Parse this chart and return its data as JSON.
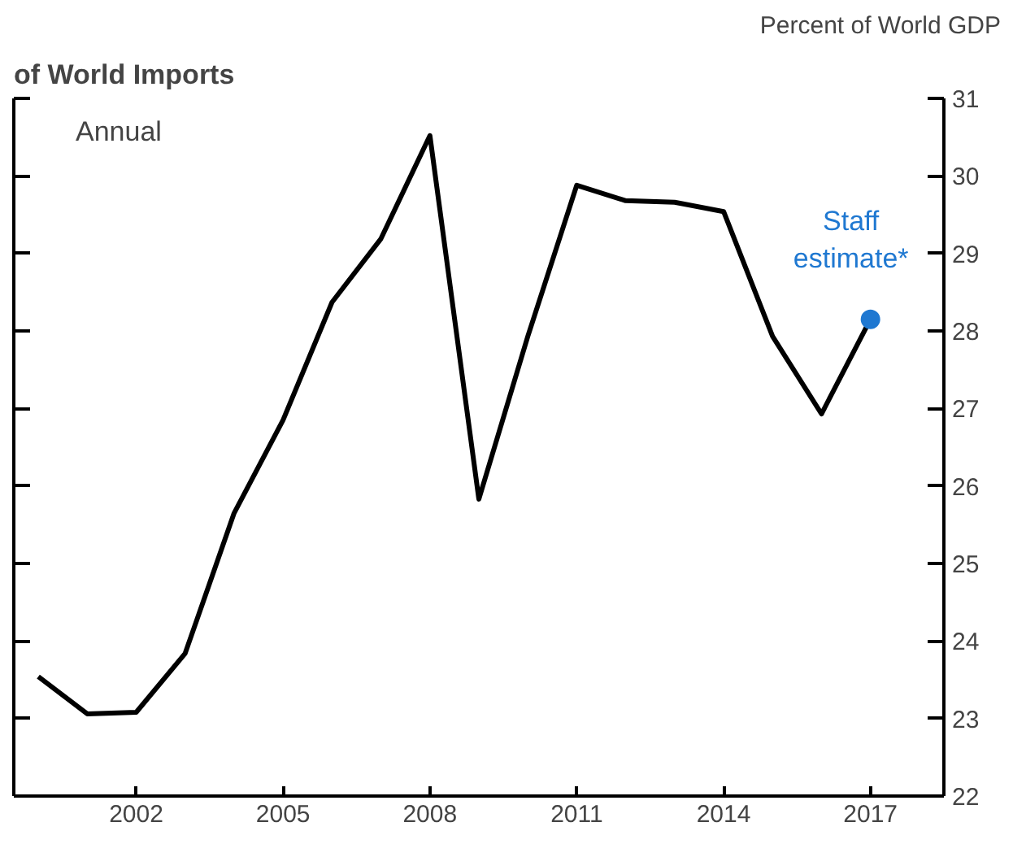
{
  "chart_data": {
    "type": "line",
    "title": "of World Imports",
    "ylabel": "Percent of World GDP",
    "x": [
      2000,
      2001,
      2002,
      2003,
      2004,
      2005,
      2006,
      2007,
      2008,
      2009,
      2010,
      2011,
      2012,
      2013,
      2014,
      2015,
      2016,
      2017
    ],
    "series": [
      {
        "color": "#000000",
        "values": [
          23.54,
          23.06,
          23.08,
          23.84,
          25.65,
          26.85,
          28.37,
          29.19,
          30.52,
          25.83,
          27.93,
          29.88,
          29.68,
          29.66,
          29.54,
          27.93,
          26.93,
          28.15
        ]
      },
      {
        "type": "scatter",
        "color": "#1f78d1",
        "x": [
          2017
        ],
        "values": [
          28.15
        ]
      }
    ],
    "annotations": [
      "Annual",
      {
        "text": "Staff estimate*",
        "x": 2017,
        "y": 28.15
      }
    ],
    "xlim": [
      1999.5,
      2018.5
    ],
    "xticks": [
      2002,
      2005,
      2008,
      2011,
      2014,
      2017
    ],
    "ylim": [
      22,
      31
    ],
    "yticks": [
      22,
      23,
      24,
      25,
      26,
      27,
      28,
      29,
      30,
      31
    ],
    "grid": false,
    "line_style": "solid"
  }
}
